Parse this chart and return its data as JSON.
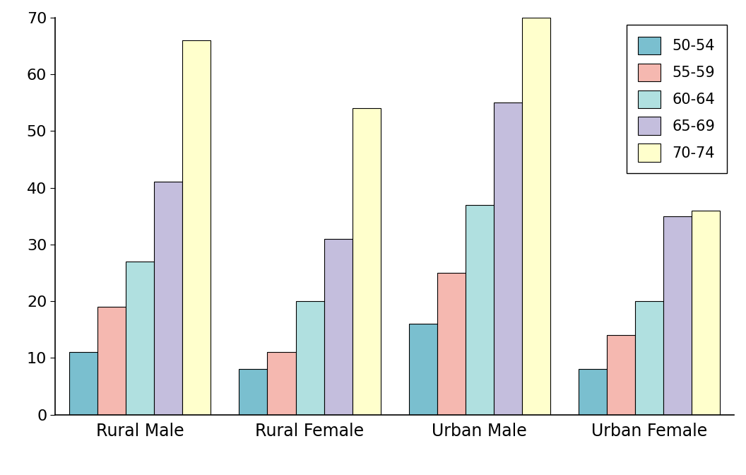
{
  "categories": [
    "Rural Male",
    "Rural Female",
    "Urban Male",
    "Urban Female"
  ],
  "age_groups": [
    "50-54",
    "55-59",
    "60-64",
    "65-69",
    "70-74"
  ],
  "values": {
    "Rural Male": [
      11,
      19,
      27,
      41,
      66
    ],
    "Rural Female": [
      8,
      11,
      20,
      31,
      54
    ],
    "Urban Male": [
      16,
      25,
      37,
      55,
      70
    ],
    "Urban Female": [
      8,
      14,
      20,
      35,
      36
    ]
  },
  "bar_colors": [
    "#7abfcf",
    "#f5b8b0",
    "#b0e0e0",
    "#c4bedd",
    "#ffffcc"
  ],
  "bar_edge_color": "#000000",
  "ylim": [
    0,
    70
  ],
  "yticks": [
    0,
    10,
    20,
    30,
    40,
    50,
    60,
    70
  ],
  "legend_labels": [
    "50-54",
    "55-59",
    "60-64",
    "65-69",
    "70-74"
  ],
  "background_color": "#ffffff",
  "fontsize_tick": 16,
  "fontsize_label": 17,
  "fontsize_legend": 15
}
